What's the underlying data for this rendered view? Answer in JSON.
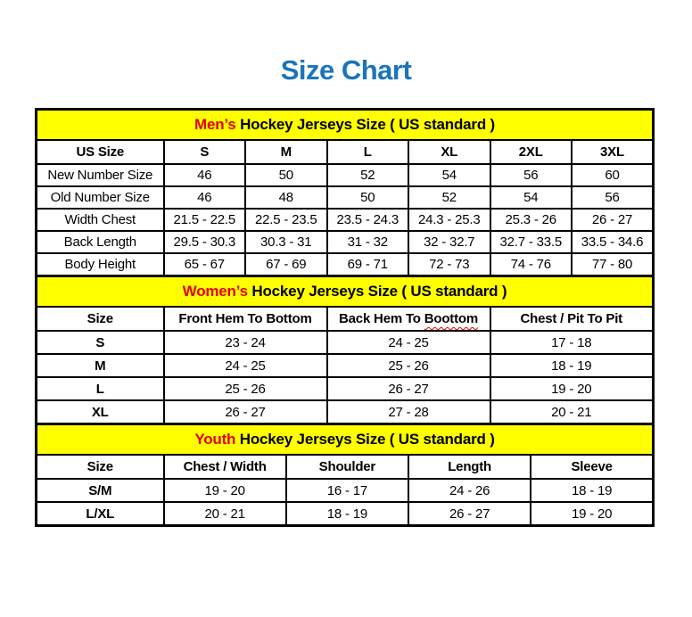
{
  "page": {
    "title": "Size Chart"
  },
  "colors": {
    "title_blue": "#1b75bc",
    "accent_red": "#e30000",
    "band_yellow": "#ffff00",
    "border_black": "#000000"
  },
  "tables": [
    {
      "id": "mens",
      "title_accent": "Men’s",
      "title_rest": " Hockey Jerseys Size ( US standard )",
      "columns": [
        "US Size",
        "S",
        "M",
        "L",
        "XL",
        "2XL",
        "3XL"
      ],
      "rows": [
        {
          "label": "New Number Size",
          "values": [
            "46",
            "50",
            "52",
            "54",
            "56",
            "60"
          ]
        },
        {
          "label": "Old Number Size",
          "values": [
            "46",
            "48",
            "50",
            "52",
            "54",
            "56"
          ]
        },
        {
          "label": "Width Chest",
          "values": [
            "21.5 - 22.5",
            "22.5 - 23.5",
            "23.5 - 24.3",
            "24.3 - 25.3",
            "25.3 - 26",
            "26 - 27"
          ]
        },
        {
          "label": "Back Length",
          "values": [
            "29.5 - 30.3",
            "30.3 - 31",
            "31 - 32",
            "32 - 32.7",
            "32.7 - 33.5",
            "33.5 - 34.6"
          ]
        },
        {
          "label": "Body Height",
          "values": [
            "65 - 67",
            "67 - 69",
            "69 - 71",
            "72 - 73",
            "74 - 76",
            "77 - 80"
          ]
        }
      ]
    },
    {
      "id": "womens",
      "title_accent": "Women’s",
      "title_rest": " Hockey Jerseys Size ( US standard )",
      "columns": [
        "Size",
        "Front Hem To Bottom",
        "Back Hem To Boottom",
        "Chest / Pit To Pit"
      ],
      "wavy_word": "Boottom",
      "rows": [
        {
          "label": "S",
          "values": [
            "23 - 24",
            "24 - 25",
            "17 - 18"
          ]
        },
        {
          "label": "M",
          "values": [
            "24 - 25",
            "25 - 26",
            "18 - 19"
          ]
        },
        {
          "label": "L",
          "values": [
            "25 - 26",
            "26 - 27",
            "19 - 20"
          ]
        },
        {
          "label": "XL",
          "values": [
            "26 - 27",
            "27 - 28",
            "20 - 21"
          ]
        }
      ]
    },
    {
      "id": "youth",
      "title_accent": "Youth",
      "title_rest": " Hockey Jerseys Size ( US standard )",
      "columns": [
        "Size",
        "Chest / Width",
        "Shoulder",
        "Length",
        "Sleeve"
      ],
      "rows": [
        {
          "label": "S/M",
          "values": [
            "19 - 20",
            "16 - 17",
            "24 - 26",
            "18 - 19"
          ]
        },
        {
          "label": "L/XL",
          "values": [
            "20 - 21",
            "18 - 19",
            "26 - 27",
            "19 - 20"
          ]
        }
      ]
    }
  ]
}
